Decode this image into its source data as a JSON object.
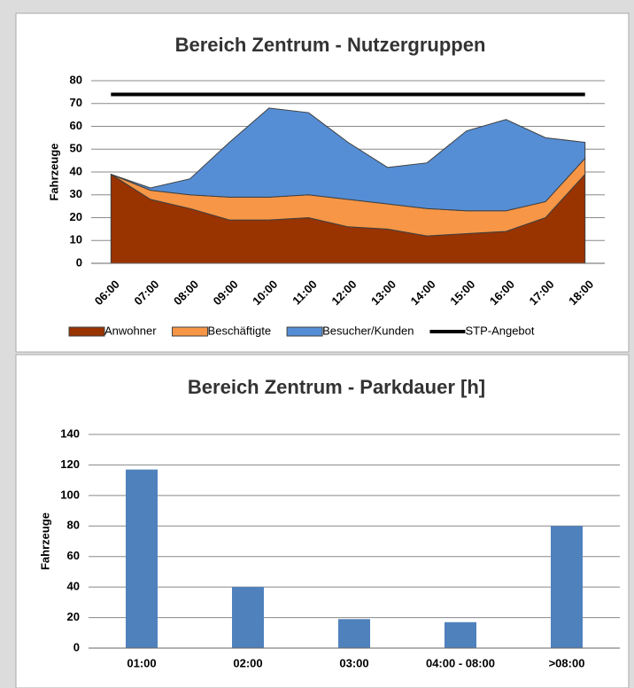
{
  "chart_data": [
    {
      "type": "area",
      "title": "Bereich Zentrum - Nutzergruppen",
      "y_label": "Fahrzeuge",
      "stacked": true,
      "categories": [
        "06:00",
        "07:00",
        "08:00",
        "09:00",
        "10:00",
        "11:00",
        "12:00",
        "13:00",
        "14:00",
        "15:00",
        "16:00",
        "17:00",
        "18:00"
      ],
      "series": [
        {
          "name": "Anwohner",
          "color": "#993300",
          "values": [
            39,
            28,
            24,
            19,
            19,
            20,
            16,
            15,
            12,
            13,
            14,
            20,
            39
          ]
        },
        {
          "name": "Beschäftigte",
          "color": "#f79646",
          "values": [
            0,
            4,
            6,
            10,
            10,
            10,
            12,
            11,
            12,
            10,
            9,
            7,
            7
          ]
        },
        {
          "name": "Besucher/Kunden",
          "color": "#558ed5",
          "values": [
            0,
            1,
            7,
            24,
            39,
            36,
            25,
            16,
            20,
            35,
            40,
            28,
            7
          ]
        },
        {
          "name": "STP-Angebot",
          "color": "#000000",
          "type": "line",
          "values": [
            74,
            74,
            74,
            74,
            74,
            74,
            74,
            74,
            74,
            74,
            74,
            74,
            74
          ]
        }
      ],
      "ylim": [
        0,
        80
      ],
      "yticks": [
        0,
        10,
        20,
        30,
        40,
        50,
        60,
        70,
        80
      ],
      "grid": true,
      "legend": "bottom"
    },
    {
      "type": "bar",
      "title": "Bereich Zentrum - Parkdauer [h]",
      "y_label": "Fahrzeuge",
      "categories": [
        "01:00",
        "02:00",
        "03:00",
        "04:00 - 08:00",
        ">08:00"
      ],
      "values": [
        117,
        40,
        19,
        17,
        80
      ],
      "color": "#4f81bd",
      "ylim": [
        0,
        140
      ],
      "yticks": [
        0,
        20,
        40,
        60,
        80,
        100,
        120,
        140
      ],
      "grid": true
    }
  ]
}
